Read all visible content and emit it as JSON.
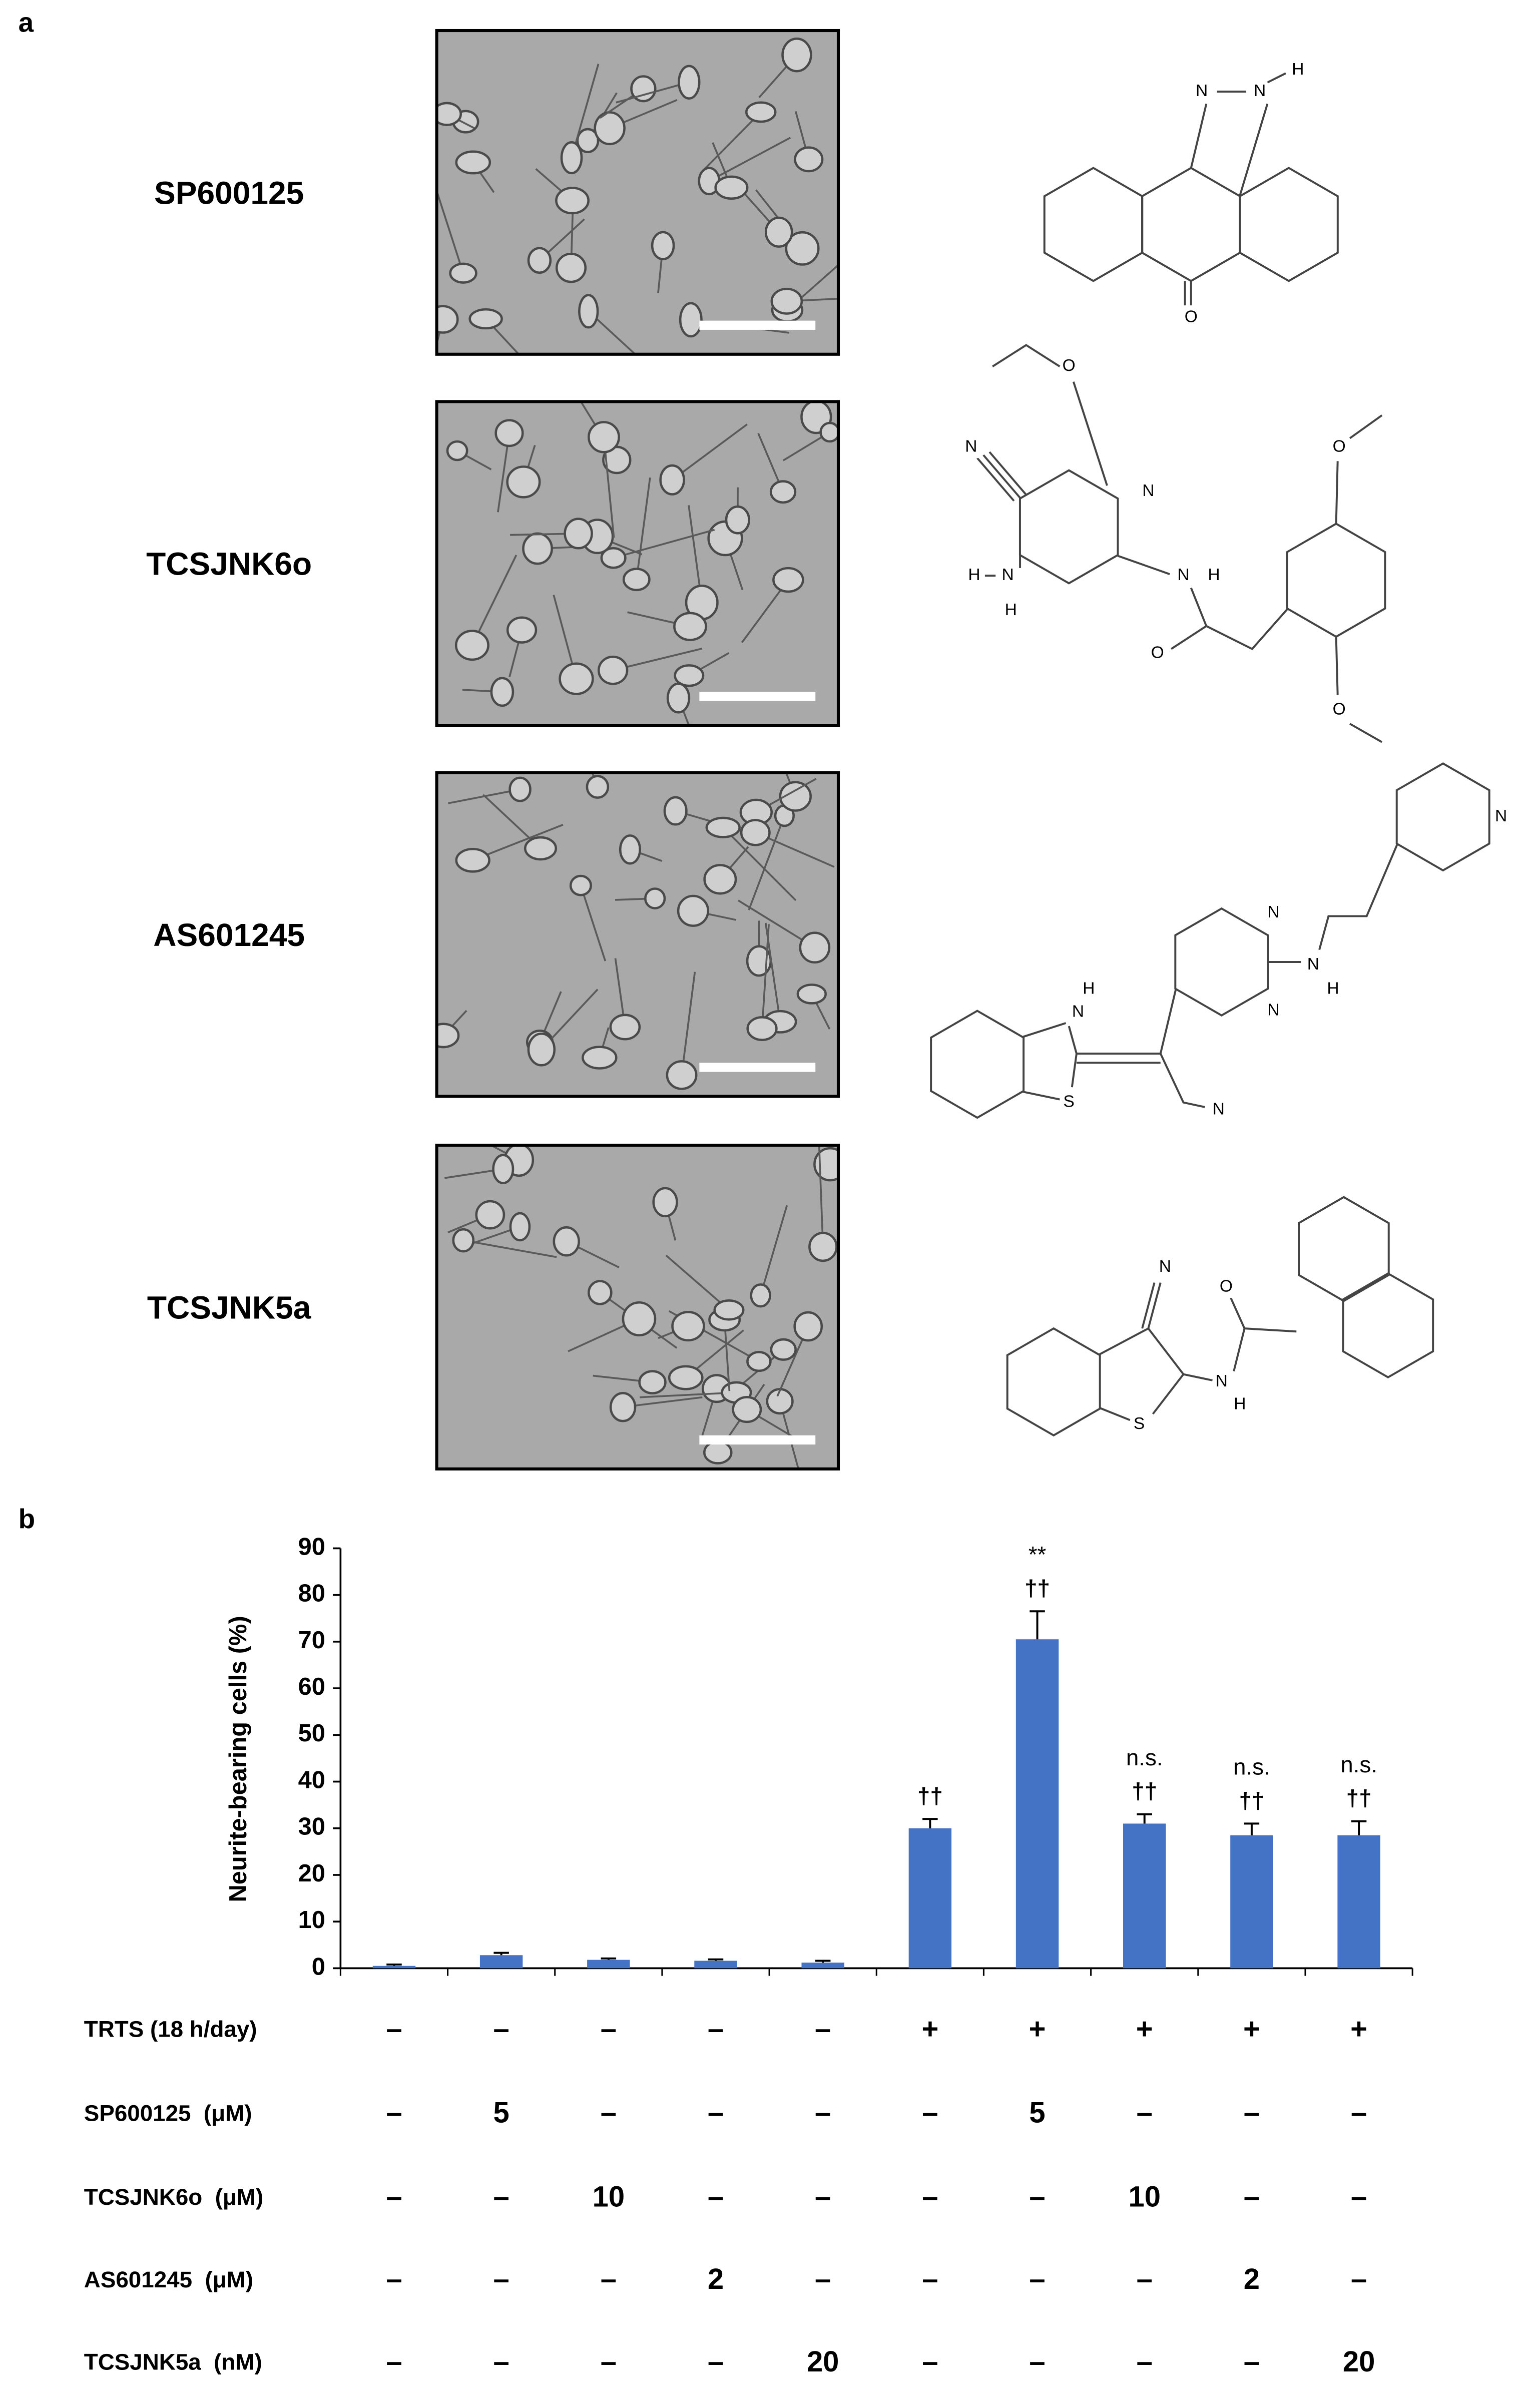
{
  "panel_a": {
    "label": "a",
    "rows": [
      {
        "name": "SP600125",
        "atoms": [
          "N",
          "N",
          "H",
          "O"
        ]
      },
      {
        "name": "TCSJNK6o",
        "atoms": [
          "N",
          "O",
          "N",
          "H",
          "N",
          "H",
          "N",
          "H",
          "O",
          "O",
          "O"
        ]
      },
      {
        "name": "AS601245",
        "atoms": [
          "N",
          "N",
          "N",
          "N",
          "H",
          "H",
          "N",
          "S",
          "N"
        ]
      },
      {
        "name": "TCSJNK5a",
        "atoms": [
          "N",
          "O",
          "N",
          "H",
          "S"
        ]
      }
    ]
  },
  "chart_data": {
    "type": "bar",
    "panel_label": "b",
    "y_label": "Neurite-bearing cells (%)",
    "values": [
      0.5,
      2.8,
      1.8,
      1.6,
      1.2,
      30,
      70.5,
      31,
      28.5,
      28.5
    ],
    "errors": [
      0.3,
      0.5,
      0.3,
      0.3,
      0.4,
      2,
      6,
      2,
      2.5,
      3
    ],
    "color": "#4472c4",
    "ylim": [
      0,
      90
    ],
    "yticks": [
      0,
      10,
      20,
      30,
      40,
      50,
      60,
      70,
      80,
      90
    ],
    "annotations": [
      null,
      null,
      null,
      null,
      null,
      [
        "††"
      ],
      [
        "**",
        "††"
      ],
      [
        "n.s.",
        "††"
      ],
      [
        "n.s.",
        "††"
      ],
      [
        "n.s.",
        "††"
      ]
    ],
    "conditions": [
      {
        "label": "TRTS (18 h/day)",
        "cells": [
          "–",
          "–",
          "–",
          "–",
          "–",
          "+",
          "+",
          "+",
          "+",
          "+"
        ]
      },
      {
        "label": "SP600125  (μM)",
        "cells": [
          "–",
          "5",
          "–",
          "–",
          "–",
          "–",
          "5",
          "–",
          "–",
          "–"
        ]
      },
      {
        "label": "TCSJNK6o  (μM)",
        "cells": [
          "–",
          "–",
          "10",
          "–",
          "–",
          "–",
          "–",
          "10",
          "–",
          "–"
        ]
      },
      {
        "label": "AS601245  (μM)",
        "cells": [
          "–",
          "–",
          "–",
          "2",
          "–",
          "–",
          "–",
          "–",
          "2",
          "–"
        ]
      },
      {
        "label": "TCSJNK5a  (nM)",
        "cells": [
          "–",
          "–",
          "–",
          "–",
          "20",
          "–",
          "–",
          "–",
          "–",
          "20"
        ]
      }
    ]
  }
}
